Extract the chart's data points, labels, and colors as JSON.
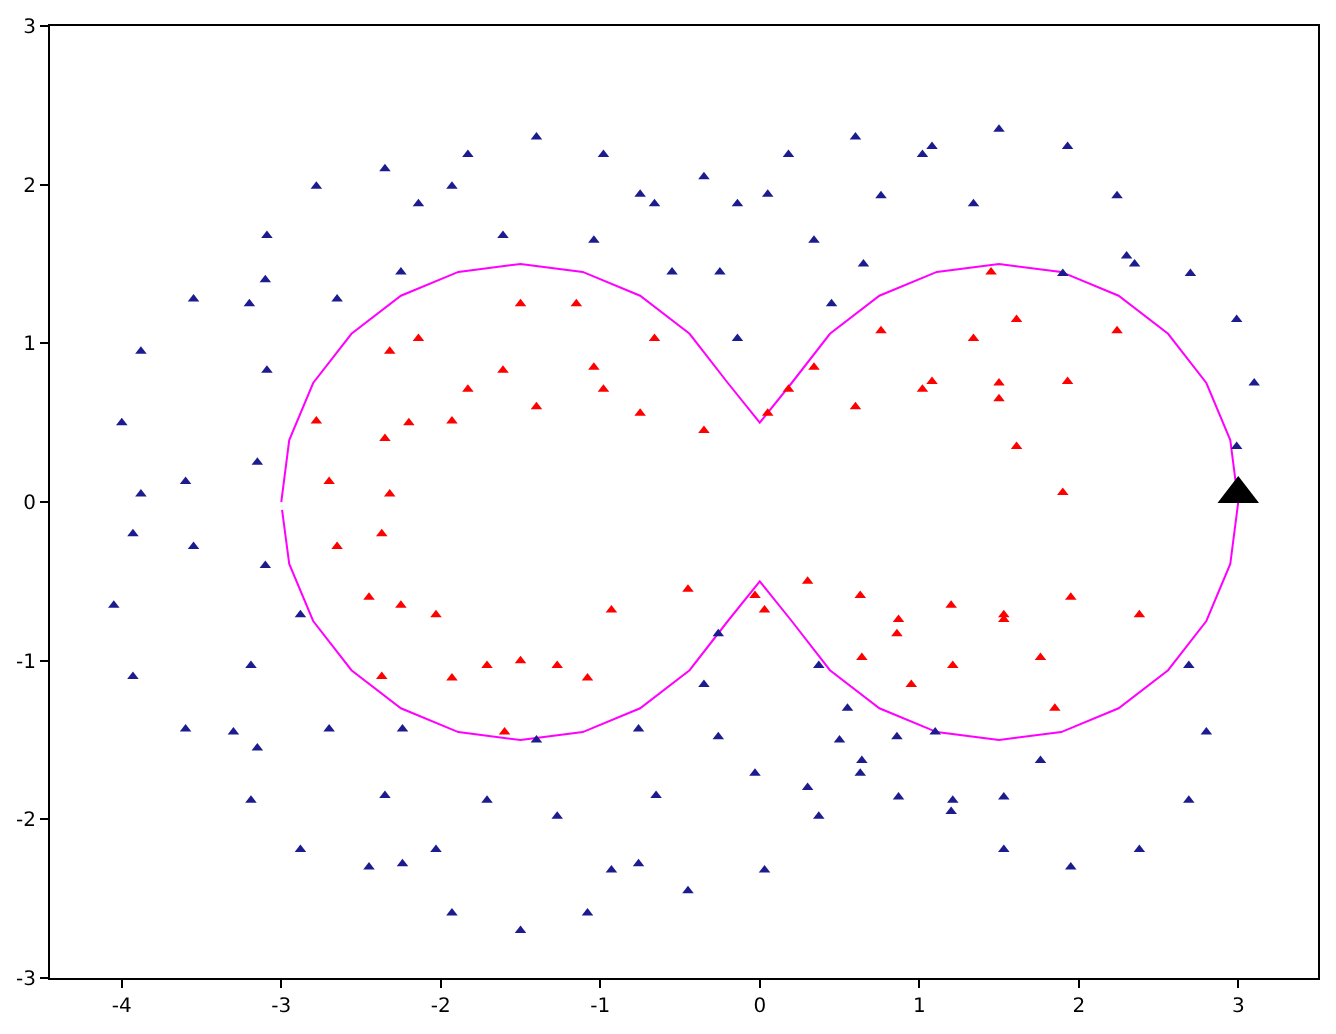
{
  "chart_data": {
    "type": "scatter",
    "xlim": [
      -4.45,
      3.5
    ],
    "xticks": [
      -4,
      -3,
      -2,
      -1,
      0,
      1,
      2,
      3
    ],
    "ylim": [
      -3,
      3
    ],
    "yticks": [
      -3,
      -2,
      -1,
      0,
      1,
      2,
      3
    ],
    "series": [
      {
        "type": "line",
        "color": "#ff00ff",
        "marker": "none",
        "line_style": "solid",
        "x": [
          -3,
          -2.95,
          -2.8,
          -2.56,
          -2.25,
          -1.89,
          -1.5,
          -1.11,
          -0.75,
          -0.44,
          -0.2,
          0,
          0.2,
          0.44,
          0.75,
          1.11,
          1.5,
          1.89,
          2.25,
          2.56,
          2.8,
          2.95,
          3,
          2.95,
          2.8,
          2.56,
          2.25,
          1.89,
          1.5,
          1.11,
          0.75,
          0.44,
          0.2,
          0,
          -0.2,
          -0.44,
          -0.75,
          -1.11,
          -1.5,
          -1.89,
          -2.25,
          -2.56,
          -2.8,
          -2.95,
          -2.995
        ],
        "values": [
          0,
          0.39,
          0.75,
          1.06,
          1.3,
          1.45,
          1.5,
          1.45,
          1.3,
          1.06,
          0.75,
          0.5,
          0.75,
          1.06,
          1.3,
          1.45,
          1.5,
          1.45,
          1.3,
          1.06,
          0.75,
          0.39,
          0,
          -0.39,
          -0.75,
          -1.06,
          -1.3,
          -1.45,
          -1.5,
          -1.45,
          -1.3,
          -1.06,
          -0.75,
          -0.5,
          -0.75,
          -1.06,
          -1.3,
          -1.45,
          -1.5,
          -1.45,
          -1.3,
          -1.06,
          -0.75,
          -0.39,
          -0.05
        ]
      },
      {
        "color": "#1c1c8f",
        "marker": "triangle",
        "x": [
          -1.61,
          -1.93,
          -2.35,
          -2.78,
          -3.09,
          -3.2,
          -3.09,
          -0.55,
          -0.66,
          -0.98,
          -1.4,
          -1.83,
          -2.14,
          -2.25,
          0.45,
          0.34,
          0.05,
          -0.35,
          -0.75,
          -1.04,
          1.34,
          1.02,
          0.6,
          0.18,
          -0.14,
          -0.25,
          -0.14,
          2.35,
          2.24,
          1.93,
          1.5,
          1.08,
          0.76,
          0.65,
          3.1,
          2.99,
          2.7,
          2.3,
          1.9,
          2.99,
          -2.65,
          -3.1,
          -3.55,
          -3.88,
          -4.0,
          -3.88,
          -3.55,
          -3.1,
          -3.15,
          -3.6,
          -3.93,
          -4.05,
          -3.93,
          -3.6,
          -3.15,
          -2.7,
          -2.88,
          -3.19,
          -3.3,
          -3.19,
          -2.88,
          -2.45,
          -2.03,
          -1.71,
          -0.65,
          -0.76,
          -2.24,
          -2.35,
          -2.24,
          -1.93,
          -1.5,
          -1.08,
          -0.76,
          0.5,
          0.37,
          -1.4,
          -1.27,
          -0.93,
          -0.45,
          0.03,
          0.37,
          -0.26,
          -0.35,
          -0.26,
          -0.03,
          0.3,
          0.63,
          0.86,
          0.55,
          0.64,
          0.87,
          1.2,
          1.53,
          1.76,
          2.8,
          2.69,
          1.1,
          1.21,
          1.53,
          1.95,
          2.38,
          2.69
        ],
        "values": [
          1.68,
          1.99,
          2.1,
          1.99,
          1.68,
          1.25,
          0.83,
          1.45,
          1.88,
          2.19,
          2.3,
          2.19,
          1.88,
          1.45,
          1.25,
          1.65,
          1.94,
          2.05,
          1.94,
          1.65,
          1.88,
          2.19,
          2.3,
          2.19,
          1.88,
          1.45,
          1.03,
          1.5,
          1.93,
          2.24,
          2.35,
          2.24,
          1.93,
          1.5,
          0.75,
          1.15,
          1.44,
          1.55,
          1.44,
          0.35,
          1.28,
          1.4,
          1.28,
          0.95,
          0.5,
          0.05,
          -0.28,
          -0.4,
          0.25,
          0.13,
          -0.2,
          -0.65,
          -1.1,
          -1.43,
          -1.55,
          -1.43,
          -0.71,
          -1.03,
          -1.45,
          -1.88,
          -2.19,
          -2.3,
          -2.19,
          -1.88,
          -1.85,
          -1.43,
          -1.43,
          -1.85,
          -2.28,
          -2.59,
          -2.7,
          -2.59,
          -2.28,
          -1.5,
          -1.03,
          -1.5,
          -1.98,
          -2.32,
          -2.45,
          -2.32,
          -1.98,
          -0.83,
          -1.15,
          -1.48,
          -1.71,
          -1.8,
          -1.71,
          -1.48,
          -1.3,
          -1.63,
          -1.86,
          -1.95,
          -1.86,
          -1.63,
          -1.45,
          -1.03,
          -1.45,
          -1.88,
          -2.19,
          -2.3,
          -2.19,
          -1.88
        ]
      },
      {
        "color": "#ff0000",
        "marker": "triangle",
        "x": [
          -1.5,
          -2.78,
          -2.35,
          -1.93,
          -1.61,
          -2.14,
          -1.83,
          -1.4,
          -0.98,
          -0.66,
          -1.15,
          -1.04,
          -0.75,
          -0.35,
          0.05,
          0.34,
          1.45,
          0.18,
          0.6,
          1.02,
          1.34,
          0.76,
          1.08,
          1.5,
          1.93,
          2.24,
          1.61,
          1.5,
          1.61,
          1.9,
          -2.2,
          -2.32,
          -2.65,
          -2.32,
          -2.25,
          -2.37,
          -2.7,
          -2.37,
          -1.6,
          -1.71,
          -2.03,
          -2.45,
          -1.08,
          -1.5,
          -1.93,
          0.03,
          -0.45,
          -0.93,
          -1.27,
          0.95,
          0.86,
          0.63,
          0.3,
          -0.03,
          1.85,
          1.76,
          1.53,
          1.2,
          0.87,
          0.64,
          2.38,
          1.95,
          1.53,
          1.21
        ],
        "values": [
          1.25,
          0.51,
          0.4,
          0.51,
          0.83,
          1.03,
          0.71,
          0.6,
          0.71,
          1.03,
          1.25,
          0.85,
          0.56,
          0.45,
          0.56,
          0.85,
          1.45,
          0.71,
          0.6,
          0.71,
          1.03,
          1.08,
          0.76,
          0.65,
          0.76,
          1.08,
          1.15,
          0.75,
          0.35,
          0.06,
          0.5,
          0.95,
          -0.28,
          0.05,
          -0.65,
          -0.2,
          0.13,
          -1.1,
          -1.45,
          -1.03,
          -0.71,
          -0.6,
          -1.11,
          -1.0,
          -1.11,
          -0.68,
          -0.55,
          -0.68,
          -1.03,
          -1.15,
          -0.83,
          -0.59,
          -0.5,
          -0.59,
          -1.3,
          -0.98,
          -0.74,
          -0.65,
          -0.74,
          -0.98,
          -0.71,
          -0.6,
          -0.71,
          -1.03
        ]
      },
      {
        "color": "#000000",
        "marker": "triangle",
        "x": [
          3.0
        ],
        "values": [
          0.05
        ]
      }
    ]
  }
}
